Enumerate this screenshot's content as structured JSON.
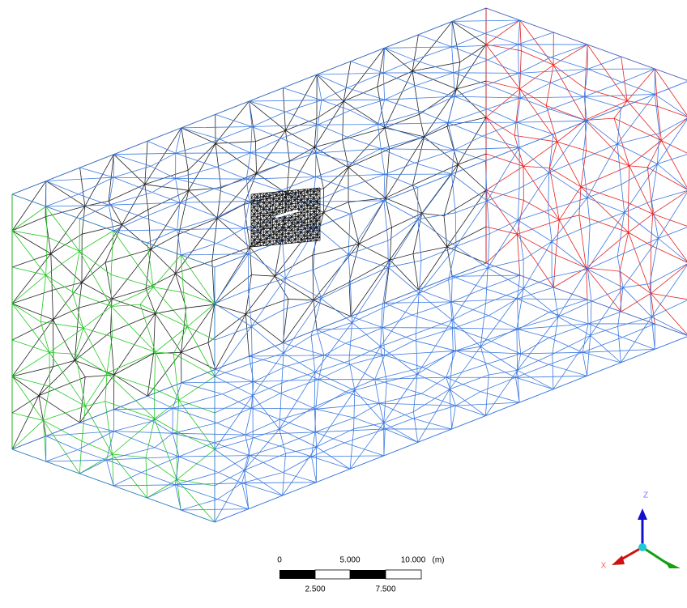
{
  "scale_bar": {
    "top_labels": [
      "0",
      "5.000",
      "10.000"
    ],
    "unit": "(m)",
    "bottom_labels": [
      "2.500",
      "7.500"
    ]
  },
  "triad": {
    "z": "Z",
    "x": "X"
  }
}
